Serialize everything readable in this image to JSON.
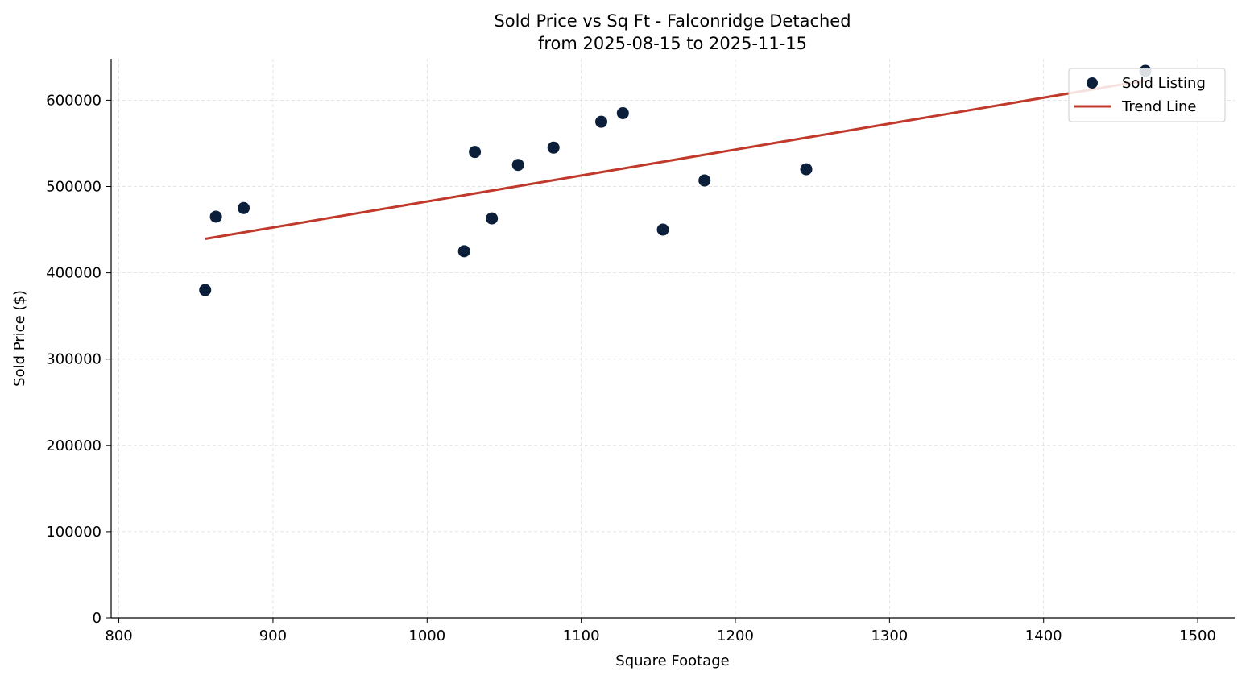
{
  "chart_data": {
    "type": "scatter",
    "title": "Sold Price vs Sq Ft - Falconridge Detached",
    "subtitle": "from 2025-08-15 to 2025-11-15",
    "xlabel": "Square Footage",
    "ylabel": "Sold Price ($)",
    "xlim": [
      795,
      1524
    ],
    "ylim": [
      0,
      648000
    ],
    "xticks": [
      800,
      900,
      1000,
      1100,
      1200,
      1300,
      1400,
      1500
    ],
    "yticks": [
      0,
      100000,
      200000,
      300000,
      400000,
      500000,
      600000
    ],
    "grid": true,
    "legend_placement": "top-right",
    "series": [
      {
        "name": "Sold Listing",
        "type": "scatter",
        "color": "#0b1e3a",
        "x": [
          856,
          863,
          881,
          1024,
          1031,
          1042,
          1059,
          1082,
          1113,
          1127,
          1153,
          1180,
          1246,
          1466
        ],
        "y": [
          380000,
          465000,
          475000,
          425000,
          540000,
          463000,
          525000,
          545000,
          575000,
          585000,
          450000,
          507000,
          520000,
          634000
        ]
      },
      {
        "name": "Trend Line",
        "type": "line",
        "color": "#c0392b",
        "x": [
          856,
          1466
        ],
        "y": [
          439300,
          622800
        ]
      }
    ]
  }
}
